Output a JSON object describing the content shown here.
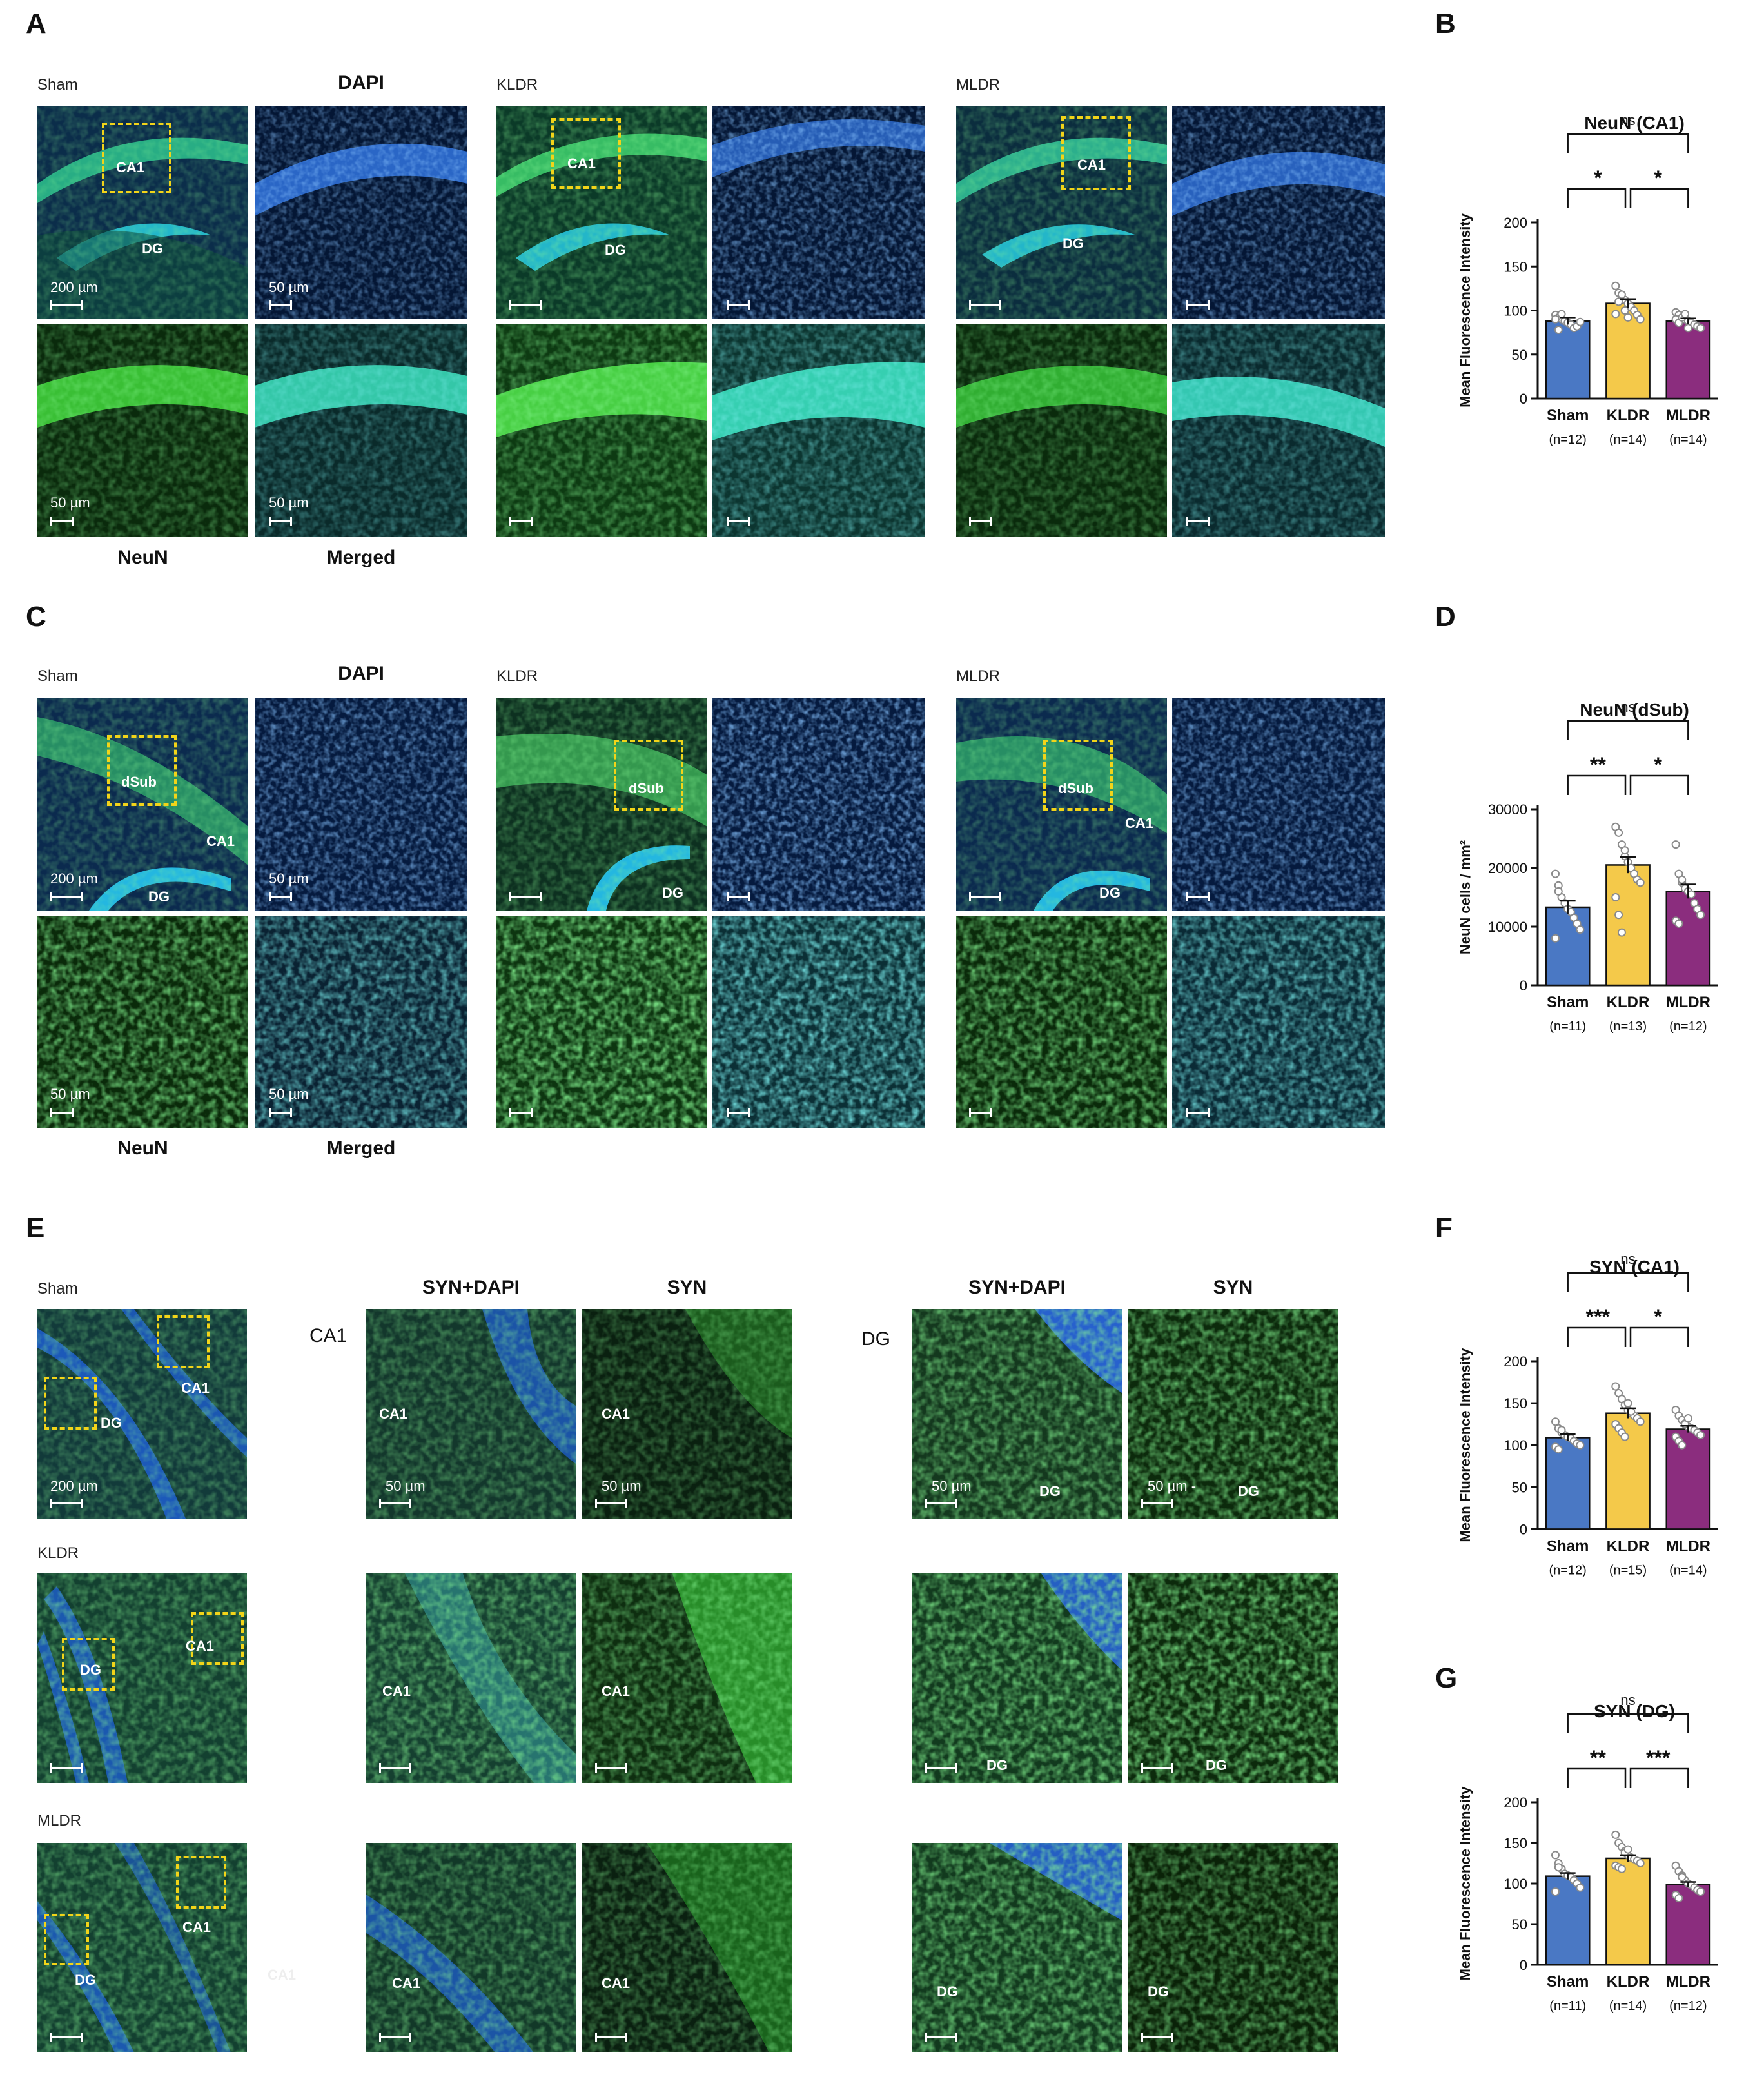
{
  "panels": {
    "A": "A",
    "B": "B",
    "C": "C",
    "D": "D",
    "E": "E",
    "F": "F",
    "G": "G"
  },
  "groups": {
    "sham": "Sham",
    "kldr": "KLDR",
    "mldr": "MLDR"
  },
  "channel_labels": {
    "dapi": "DAPI",
    "neun": "NeuN",
    "merged": "Merged",
    "syn_dapi": "SYN+DAPI",
    "syn": "SYN"
  },
  "region_labels": {
    "ca1": "CA1",
    "dg": "DG",
    "dsub": "dSub",
    "faded_ca1": "CA1"
  },
  "scale_labels": {
    "um200": "200 µm",
    "um50": "50 µm",
    "um50b": "50 µm -"
  },
  "colors": {
    "sham": "#4a78c4",
    "kldr": "#f4c94a",
    "mldr": "#8b2d7e",
    "roi": "#f2d419",
    "dapi": "#1e4fa8",
    "neun": "#2fae3a"
  },
  "chart_data": [
    {
      "id": "B",
      "type": "bar",
      "title": "NeuN (CA1)",
      "ylabel": "Mean Fluorescence Intensity",
      "ylim": [
        0,
        200
      ],
      "yticks": [
        "0",
        "50",
        "100",
        "150",
        "200"
      ],
      "ytick_values": [
        0,
        50,
        100,
        150,
        200
      ],
      "categories": [
        "Sham",
        "KLDR",
        "MLDR"
      ],
      "n_labels": [
        "(n=12)",
        "(n=14)",
        "(n=14)"
      ],
      "values": [
        88,
        108,
        88
      ],
      "sem": [
        4,
        5,
        3
      ],
      "points": [
        [
          95,
          92,
          90,
          88,
          86,
          84,
          80,
          82,
          87,
          90,
          78,
          96
        ],
        [
          128,
          120,
          115,
          112,
          108,
          104,
          100,
          95,
          90,
          96,
          110,
          118,
          100,
          92
        ],
        [
          98,
          95,
          92,
          90,
          88,
          86,
          84,
          82,
          80,
          90,
          86,
          92,
          96,
          80
        ]
      ],
      "brackets": [
        {
          "from": 0,
          "to": 1,
          "label": "*"
        },
        {
          "from": 1,
          "to": 2,
          "label": "*"
        },
        {
          "from": 0,
          "to": 2,
          "label": "ns"
        }
      ]
    },
    {
      "id": "D",
      "type": "bar",
      "title": "NeuN (dSub)",
      "ylabel": "NeuN cells / mm²",
      "ylim": [
        0,
        30000
      ],
      "yticks": [
        "0",
        "10000",
        "20000",
        "30000"
      ],
      "ytick_values": [
        0,
        10000,
        20000,
        30000
      ],
      "categories": [
        "Sham",
        "KLDR",
        "MLDR"
      ],
      "n_labels": [
        "(n=11)",
        "(n=13)",
        "(n=12)"
      ],
      "values": [
        13300,
        20500,
        16000
      ],
      "sem": [
        1100,
        1400,
        1200
      ],
      "points": [
        [
          19000,
          17000,
          15000,
          14000,
          13000,
          12500,
          11500,
          10500,
          9500,
          8000,
          16000
        ],
        [
          27000,
          26000,
          24000,
          22000,
          21000,
          20000,
          19000,
          18000,
          17500,
          15000,
          12000,
          9000,
          23000
        ],
        [
          24000,
          19000,
          17500,
          16500,
          16000,
          15500,
          14000,
          13000,
          12000,
          11000,
          10500,
          18000
        ]
      ],
      "brackets": [
        {
          "from": 0,
          "to": 1,
          "label": "**"
        },
        {
          "from": 1,
          "to": 2,
          "label": "*"
        },
        {
          "from": 0,
          "to": 2,
          "label": "ns"
        }
      ]
    },
    {
      "id": "F",
      "type": "bar",
      "title": "SYN (CA1)",
      "ylabel": "Mean Fluorescence Intensity",
      "ylim": [
        0,
        200
      ],
      "yticks": [
        "0",
        "50",
        "100",
        "150",
        "200"
      ],
      "ytick_values": [
        0,
        50,
        100,
        150,
        200
      ],
      "categories": [
        "Sham",
        "KLDR",
        "MLDR"
      ],
      "n_labels": [
        "(n=12)",
        "(n=15)",
        "(n=14)"
      ],
      "values": [
        109,
        138,
        119
      ],
      "sem": [
        4,
        6,
        4
      ],
      "points": [
        [
          128,
          120,
          115,
          112,
          110,
          108,
          105,
          102,
          100,
          98,
          95,
          118
        ],
        [
          170,
          162,
          155,
          148,
          142,
          138,
          135,
          132,
          128,
          125,
          120,
          115,
          110,
          150,
          140
        ],
        [
          142,
          135,
          130,
          126,
          122,
          120,
          118,
          115,
          112,
          110,
          105,
          100,
          125,
          132
        ]
      ],
      "brackets": [
        {
          "from": 0,
          "to": 1,
          "label": "***"
        },
        {
          "from": 1,
          "to": 2,
          "label": "*"
        },
        {
          "from": 0,
          "to": 2,
          "label": "ns"
        }
      ]
    },
    {
      "id": "G",
      "type": "bar",
      "title": "SYN (DG)",
      "ylabel": "Mean Fluorescence Intensity",
      "ylim": [
        0,
        200
      ],
      "yticks": [
        "0",
        "50",
        "100",
        "150",
        "200"
      ],
      "ytick_values": [
        0,
        50,
        100,
        150,
        200
      ],
      "categories": [
        "Sham",
        "KLDR",
        "MLDR"
      ],
      "n_labels": [
        "(n=11)",
        "(n=14)",
        "(n=12)"
      ],
      "values": [
        109,
        131,
        99
      ],
      "sem": [
        4,
        4,
        3
      ],
      "points": [
        [
          135,
          125,
          118,
          112,
          110,
          108,
          104,
          100,
          95,
          90,
          120
        ],
        [
          160,
          150,
          145,
          140,
          135,
          132,
          130,
          128,
          125,
          122,
          120,
          118,
          138,
          142
        ],
        [
          122,
          115,
          110,
          104,
          100,
          98,
          95,
          92,
          90,
          86,
          82,
          108
        ]
      ],
      "brackets": [
        {
          "from": 0,
          "to": 1,
          "label": "**"
        },
        {
          "from": 1,
          "to": 2,
          "label": "***"
        },
        {
          "from": 0,
          "to": 2,
          "label": "ns"
        }
      ]
    }
  ]
}
